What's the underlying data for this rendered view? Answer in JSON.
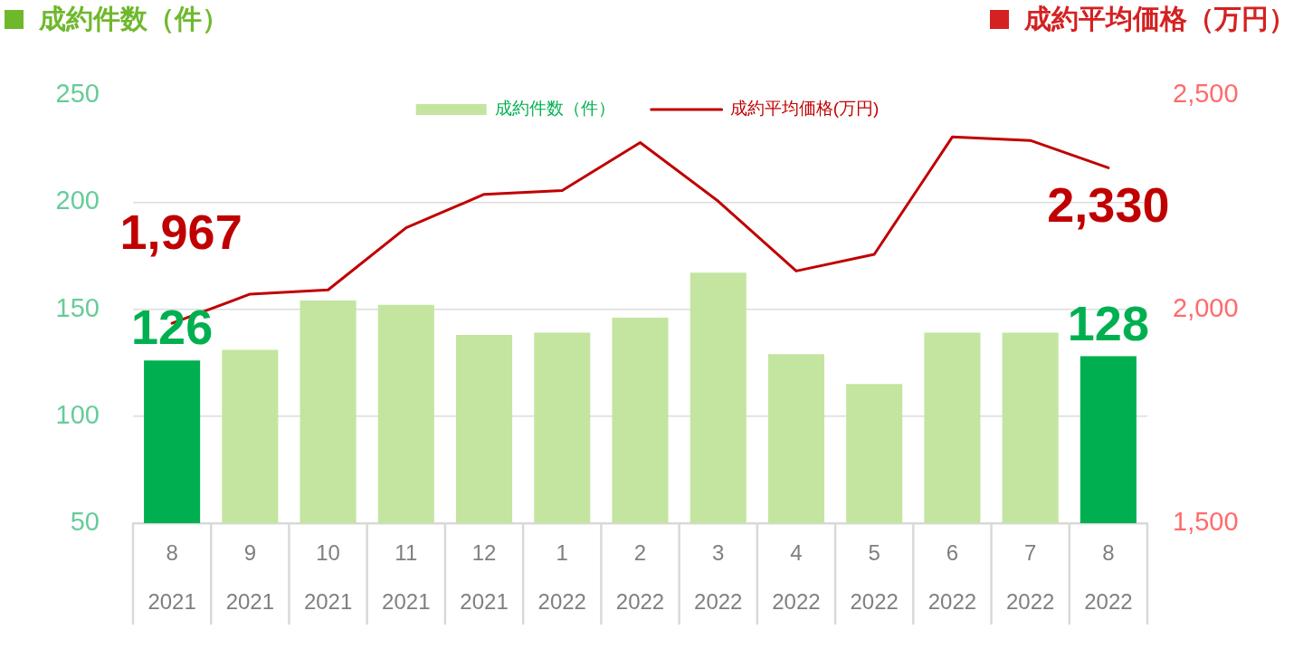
{
  "chart_data": {
    "type": "bar",
    "ylabel": "成約件数（件）",
    "y2label": "成約平均価格（万円）",
    "categories": [
      "8\n2021",
      "9\n2021",
      "10\n2021",
      "11\n2021",
      "12\n2021",
      "1\n2022",
      "2\n2022",
      "3\n2022",
      "4\n2022",
      "5\n2022",
      "6\n2022",
      "7\n2022",
      "8\n2022"
    ],
    "series": [
      {
        "name": "成約件数（件）",
        "color": "#c3e5a0",
        "colors": [
          "#00b050",
          "#c3e5a0",
          "#c3e5a0",
          "#c3e5a0",
          "#c3e5a0",
          "#c3e5a0",
          "#c3e5a0",
          "#c3e5a0",
          "#c3e5a0",
          "#c3e5a0",
          "#c3e5a0",
          "#c3e5a0",
          "#00b050"
        ],
        "values": [
          126,
          131,
          154,
          152,
          138,
          139,
          146,
          167,
          129,
          115,
          139,
          139,
          128
        ],
        "value_labels": [
          "126",
          null,
          null,
          null,
          null,
          null,
          null,
          null,
          null,
          null,
          null,
          null,
          "128"
        ]
      },
      {
        "name": "成約平均価格(万円)",
        "type": "line",
        "axis": "y2",
        "color": "#c00000",
        "values": [
          1967,
          2035,
          2045,
          2190,
          2268,
          2277,
          2389,
          2252,
          2089,
          2128,
          2402,
          2394,
          2330
        ],
        "value_labels": [
          "1,967",
          null,
          null,
          null,
          null,
          null,
          null,
          null,
          null,
          null,
          null,
          null,
          "2,330"
        ]
      }
    ],
    "ylim": [
      50,
      250
    ],
    "yticks": [
      50,
      100,
      150,
      200,
      250
    ],
    "y2lim": [
      1500,
      2500
    ],
    "y2ticks": [
      {
        "value": 1500,
        "label": "1,500"
      },
      {
        "value": 2000,
        "label": "2,000"
      },
      {
        "value": 2500,
        "label": "2,500"
      }
    ],
    "grid": "y",
    "legend": "top"
  }
}
